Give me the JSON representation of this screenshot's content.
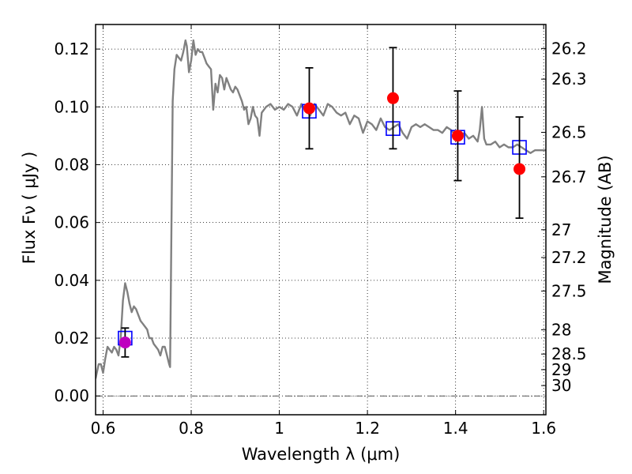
{
  "chart_data": {
    "type": "scatter",
    "xlabel": "Wavelength  λ (μm)",
    "ylabel": "Flux  Fν  ( μJy )",
    "y2label": "Magnitude (AB)",
    "xlim": [
      0.583,
      1.605
    ],
    "ylim": [
      -0.0065,
      0.1285
    ],
    "xticks": [
      0.6,
      0.8,
      1.0,
      1.2,
      1.4,
      1.6
    ],
    "xtick_labels": [
      "0.6",
      "0.8",
      "1",
      "1.2",
      "1.4",
      "1.6"
    ],
    "yticks": [
      0.0,
      0.02,
      0.04,
      0.06,
      0.08,
      0.1,
      0.12
    ],
    "ytick_labels": [
      "0.00",
      "0.02",
      "0.04",
      "0.06",
      "0.08",
      "0.10",
      "0.12"
    ],
    "y2ticks": [
      {
        "label": "26.2",
        "flux": 0.1202
      },
      {
        "label": "26.3",
        "flux": 0.1096
      },
      {
        "label": "26.5",
        "flux": 0.0912
      },
      {
        "label": "26.7",
        "flux": 0.0758
      },
      {
        "label": "27",
        "flux": 0.0575
      },
      {
        "label": "27.2",
        "flux": 0.0479
      },
      {
        "label": "27.5",
        "flux": 0.0363
      },
      {
        "label": "28",
        "flux": 0.0229
      },
      {
        "label": "28.5",
        "flux": 0.0145
      },
      {
        "label": "29",
        "flux": 0.0091
      },
      {
        "label": "30",
        "flux": 0.0036
      }
    ],
    "grid": true,
    "colors": {
      "model": "#808080",
      "observed": "#ff0000",
      "observed_first": "#bf00bf",
      "synthetic": "#0000ff",
      "errorbar": "#000000",
      "zero_line": "#555555"
    },
    "series": [
      {
        "kind": "model-spectrum",
        "x": [
          0.583,
          0.59,
          0.595,
          0.6,
          0.605,
          0.61,
          0.615,
          0.62,
          0.625,
          0.63,
          0.635,
          0.64,
          0.645,
          0.65,
          0.655,
          0.66,
          0.665,
          0.67,
          0.675,
          0.68,
          0.685,
          0.69,
          0.695,
          0.7,
          0.705,
          0.71,
          0.715,
          0.72,
          0.725,
          0.73,
          0.735,
          0.74,
          0.745,
          0.75,
          0.752,
          0.755,
          0.758,
          0.762,
          0.767,
          0.772,
          0.777,
          0.782,
          0.787,
          0.79,
          0.795,
          0.8,
          0.805,
          0.81,
          0.815,
          0.82,
          0.825,
          0.83,
          0.835,
          0.84,
          0.845,
          0.85,
          0.855,
          0.86,
          0.865,
          0.87,
          0.875,
          0.88,
          0.885,
          0.89,
          0.895,
          0.9,
          0.905,
          0.91,
          0.915,
          0.92,
          0.925,
          0.93,
          0.935,
          0.94,
          0.945,
          0.95,
          0.955,
          0.96,
          0.97,
          0.98,
          0.99,
          1.0,
          1.01,
          1.02,
          1.03,
          1.04,
          1.05,
          1.06,
          1.07,
          1.08,
          1.09,
          1.1,
          1.11,
          1.12,
          1.13,
          1.14,
          1.15,
          1.16,
          1.17,
          1.18,
          1.19,
          1.2,
          1.21,
          1.22,
          1.23,
          1.24,
          1.25,
          1.26,
          1.27,
          1.28,
          1.29,
          1.3,
          1.31,
          1.32,
          1.33,
          1.34,
          1.35,
          1.36,
          1.37,
          1.38,
          1.39,
          1.4,
          1.41,
          1.42,
          1.43,
          1.44,
          1.45,
          1.455,
          1.46,
          1.465,
          1.47,
          1.48,
          1.49,
          1.5,
          1.51,
          1.52,
          1.53,
          1.54,
          1.55,
          1.56,
          1.57,
          1.58,
          1.59,
          1.6,
          1.605
        ],
        "y": [
          0.006,
          0.011,
          0.011,
          0.008,
          0.013,
          0.017,
          0.016,
          0.015,
          0.017,
          0.016,
          0.014,
          0.02,
          0.033,
          0.039,
          0.036,
          0.032,
          0.029,
          0.031,
          0.03,
          0.028,
          0.026,
          0.025,
          0.024,
          0.023,
          0.02,
          0.02,
          0.018,
          0.017,
          0.016,
          0.014,
          0.017,
          0.017,
          0.014,
          0.011,
          0.01,
          0.055,
          0.102,
          0.113,
          0.118,
          0.117,
          0.116,
          0.119,
          0.123,
          0.121,
          0.112,
          0.116,
          0.123,
          0.118,
          0.12,
          0.119,
          0.119,
          0.117,
          0.115,
          0.114,
          0.113,
          0.099,
          0.108,
          0.105,
          0.111,
          0.11,
          0.106,
          0.11,
          0.108,
          0.106,
          0.105,
          0.107,
          0.106,
          0.104,
          0.102,
          0.099,
          0.1,
          0.094,
          0.096,
          0.1,
          0.097,
          0.096,
          0.09,
          0.098,
          0.1,
          0.101,
          0.099,
          0.1,
          0.099,
          0.101,
          0.1,
          0.097,
          0.101,
          0.099,
          0.097,
          0.101,
          0.099,
          0.097,
          0.101,
          0.1,
          0.098,
          0.097,
          0.098,
          0.094,
          0.097,
          0.096,
          0.091,
          0.095,
          0.094,
          0.092,
          0.096,
          0.093,
          0.092,
          0.093,
          0.094,
          0.091,
          0.089,
          0.093,
          0.094,
          0.093,
          0.094,
          0.093,
          0.092,
          0.092,
          0.091,
          0.093,
          0.092,
          0.09,
          0.09,
          0.091,
          0.089,
          0.09,
          0.088,
          0.092,
          0.1,
          0.089,
          0.087,
          0.087,
          0.088,
          0.086,
          0.087,
          0.086,
          0.086,
          0.087,
          0.086,
          0.085,
          0.084,
          0.085,
          0.085,
          0.085,
          0.085
        ]
      },
      {
        "kind": "synthetic-photometry",
        "x": [
          0.65,
          1.068,
          1.258,
          1.405,
          1.545
        ],
        "y": [
          0.02,
          0.0985,
          0.0925,
          0.0895,
          0.086
        ]
      },
      {
        "kind": "observed-photometry",
        "x": [
          0.65,
          1.068,
          1.258,
          1.405,
          1.545
        ],
        "y": [
          0.0185,
          0.0995,
          0.103,
          0.09,
          0.0785
        ],
        "yerr_low": [
          0.0135,
          0.0855,
          0.0855,
          0.0745,
          0.0615
        ],
        "yerr_high": [
          0.0235,
          0.1135,
          0.1205,
          0.1055,
          0.0965
        ]
      }
    ]
  }
}
